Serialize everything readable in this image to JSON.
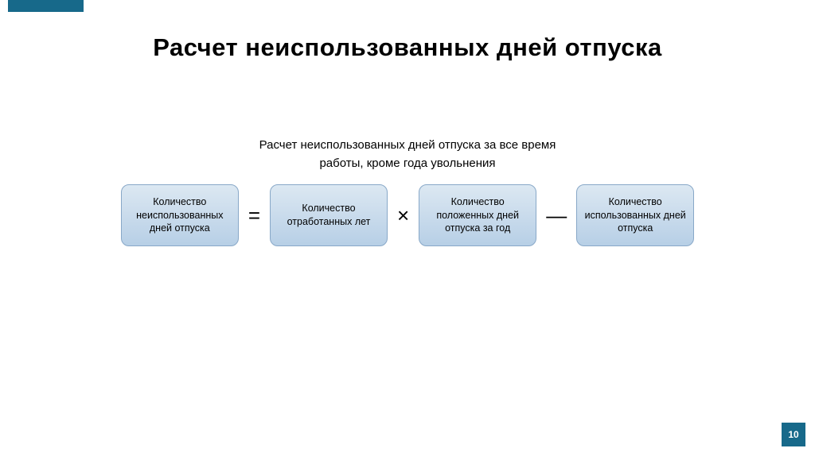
{
  "colors": {
    "accent": "#17698a",
    "box_fill_top": "#dce8f2",
    "box_fill_bottom": "#b7cfe6",
    "box_border": "#88a8c8",
    "page_num_bg": "#17698a",
    "text": "#000000"
  },
  "top_bar": {
    "bg": "#17698a"
  },
  "title": "Расчет неиспользованных дней отпуска",
  "subtitle_line1": "Расчет неиспользованных дней отпуска за все время",
  "subtitle_line2": "работы, кроме года увольнения",
  "formula": {
    "box1": "Количество неиспользованных дней отпуска",
    "op1": "=",
    "box2": "Количество отработанных лет",
    "op2": "×",
    "box3": "Количество положенных дней отпуска за год",
    "op3": "—",
    "box4": "Количество использованных дней отпуска"
  },
  "page_number": "10"
}
